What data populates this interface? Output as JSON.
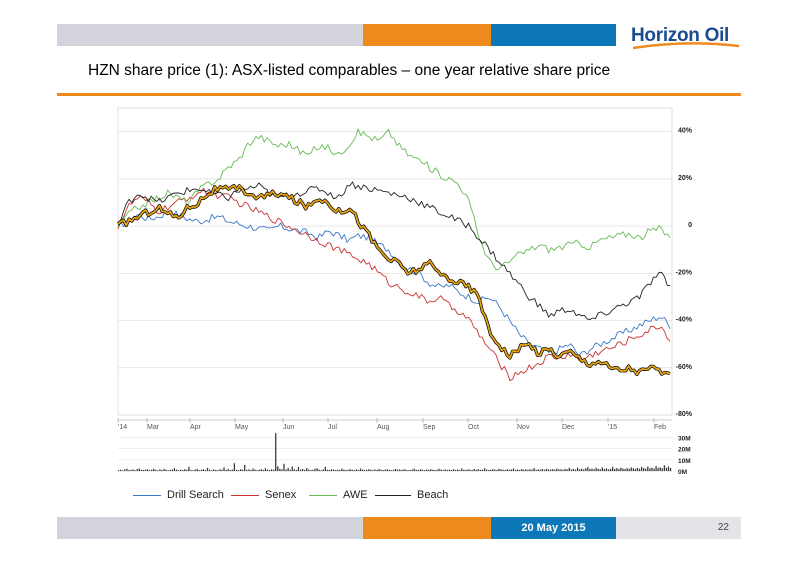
{
  "header": {
    "logo_text": "Horizon Oil",
    "title": "HZN share price (1): ASX-listed comparables – one year relative share price"
  },
  "footer": {
    "date": "20 May 2015",
    "page": "22"
  },
  "colors": {
    "orange": "#ef8a1e",
    "blue": "#0d78b8",
    "grey": "#d3d3dc",
    "drill_search": "#3a78c8",
    "senex": "#cc3333",
    "awe": "#66bb55",
    "beach": "#222222",
    "hzn": "#e8a516"
  },
  "chart_data": {
    "type": "line",
    "y_ticks": [
      "40%",
      "20%",
      "0",
      "-20%",
      "-40%",
      "-60%",
      "-80%"
    ],
    "ylim": [
      -80,
      50
    ],
    "x_ticks": [
      "'14",
      "Mar",
      "Apr",
      "May",
      "Jun",
      "Jul",
      "Aug",
      "Sep",
      "Oct",
      "Nov",
      "Dec",
      "'15",
      "Feb"
    ],
    "series": [
      {
        "name": "Drill Search",
        "key": "drill_search",
        "values": [
          0,
          2,
          5,
          3,
          4,
          6,
          5,
          3,
          2,
          3,
          4,
          2,
          1,
          0,
          -1,
          -2,
          0,
          -1,
          -2,
          -3,
          -5,
          -2,
          -4,
          -6,
          -4,
          -5,
          -8,
          -10,
          -15,
          -18,
          -20,
          -24,
          -26,
          -25,
          -28,
          -30,
          -32,
          -30,
          -34,
          -40,
          -46,
          -50,
          -52,
          -54,
          -52,
          -50,
          -55,
          -52,
          -50,
          -48,
          -46,
          -44,
          -42,
          -40,
          -38,
          -42
        ]
      },
      {
        "name": "Senex",
        "key": "senex",
        "values": [
          0,
          8,
          12,
          10,
          6,
          8,
          10,
          12,
          14,
          15,
          13,
          12,
          10,
          8,
          6,
          4,
          2,
          0,
          -2,
          -4,
          -6,
          -8,
          -10,
          -12,
          -14,
          -16,
          -20,
          -24,
          -26,
          -28,
          -30,
          -32,
          -30,
          -34,
          -36,
          -40,
          -46,
          -52,
          -58,
          -64,
          -62,
          -60,
          -58,
          -55,
          -56,
          -54,
          -57,
          -55,
          -53,
          -52,
          -50,
          -48,
          -46,
          -44,
          -42,
          -48
        ]
      },
      {
        "name": "AWE",
        "key": "awe",
        "values": [
          0,
          5,
          8,
          10,
          12,
          14,
          12,
          10,
          15,
          18,
          20,
          25,
          28,
          35,
          38,
          36,
          34,
          35,
          32,
          30,
          34,
          33,
          30,
          35,
          40,
          38,
          36,
          40,
          34,
          30,
          28,
          25,
          22,
          20,
          18,
          10,
          -5,
          -15,
          -18,
          -15,
          -12,
          -10,
          -8,
          -10,
          -9,
          -8,
          -7,
          -9,
          -6,
          -5,
          -4,
          -3,
          -5,
          -2,
          -1,
          -5
        ]
      },
      {
        "name": "Beach",
        "key": "beach",
        "values": [
          0,
          10,
          14,
          12,
          10,
          12,
          14,
          15,
          16,
          14,
          13,
          12,
          15,
          16,
          17,
          14,
          12,
          13,
          14,
          15,
          16,
          14,
          12,
          18,
          17,
          16,
          15,
          14,
          13,
          12,
          10,
          8,
          6,
          4,
          2,
          0,
          -5,
          -10,
          -15,
          -20,
          -25,
          -30,
          -34,
          -38,
          -36,
          -35,
          -38,
          -40,
          -38,
          -36,
          -34,
          -32,
          -30,
          -24,
          -20,
          -26
        ]
      },
      {
        "name": "",
        "key": "hzn",
        "values": [
          0,
          2,
          4,
          6,
          8,
          5,
          4,
          8,
          10,
          14,
          16,
          15,
          16,
          14,
          12,
          13,
          14,
          12,
          10,
          8,
          12,
          10,
          6,
          8,
          2,
          -4,
          -10,
          -14,
          -16,
          -20,
          -18,
          -16,
          -20,
          -22,
          -24,
          -26,
          -30,
          -45,
          -50,
          -55,
          -52,
          -50,
          -54,
          -52,
          -55,
          -53,
          -56,
          -58,
          -57,
          -60,
          -61,
          -60,
          -62,
          -60,
          -61,
          -64
        ]
      }
    ],
    "volume": {
      "y_ticks": [
        "30M",
        "20M",
        "10M",
        "0M"
      ],
      "ylim": [
        0,
        35
      ],
      "values": [
        0.8,
        1.2,
        0.6,
        1.5,
        2.1,
        0.9,
        1.1,
        1.4,
        0.7,
        1.8,
        2.2,
        1.0,
        0.9,
        1.3,
        1.6,
        0.8,
        1.2,
        2.0,
        1.1,
        0.7,
        1.5,
        0.9,
        1.8,
        1.2,
        0.6,
        1.0,
        1.4,
        2.5,
        1.3,
        0.8,
        1.2,
        0.9,
        1.6,
        1.1,
        3.8,
        1.0,
        0.7,
        1.3,
        1.9,
        0.8,
        1.1,
        1.6,
        0.9,
        2.8,
        1.2,
        0.7,
        1.4,
        1.0,
        0.8,
        1.5,
        1.2,
        3.2,
        1.0,
        1.8,
        0.9,
        1.3,
        7.0,
        1.1,
        0.8,
        1.6,
        1.2,
        5.5,
        1.0,
        1.4,
        0.9,
        2.2,
        1.3,
        0.8,
        1.1,
        1.7,
        1.0,
        2.4,
        1.3,
        0.9,
        1.5,
        1.1,
        34,
        4.2,
        2.0,
        1.5,
        6.5,
        1.3,
        2.8,
        1.1,
        4.0,
        1.6,
        0.9,
        3.5,
        1.2,
        1.8,
        1.0,
        2.6,
        1.4,
        0.8,
        1.1,
        1.9,
        2.5,
        1.2,
        0.7,
        1.4,
        3.8,
        1.1,
        0.9,
        1.6,
        1.3,
        0.8,
        1.2,
        1.0,
        2.0,
        1.4,
        0.9,
        1.1,
        1.7,
        1.2,
        0.8,
        1.5,
        1.0,
        2.2,
        1.3,
        0.9,
        1.1,
        1.6,
        1.2,
        0.8,
        1.4,
        1.0,
        1.8,
        1.1,
        0.9,
        1.3,
        1.5,
        1.0,
        0.8,
        1.2,
        1.9,
        1.1,
        1.4,
        0.9,
        1.6,
        1.2,
        0.8,
        1.0,
        1.3,
        2.1,
        1.1,
        0.9,
        1.5,
        1.2,
        0.8,
        1.4,
        1.0,
        1.7,
        1.2,
        0.9,
        1.1,
        2.0,
        1.3,
        0.8,
        1.5,
        1.0,
        1.2,
        0.9,
        1.6,
        1.1,
        1.4,
        0.8,
        2.3,
        1.2,
        1.0,
        1.5,
        1.3,
        0.9,
        1.8,
        1.1,
        1.6,
        1.0,
        1.2,
        2.4,
        1.4,
        0.9,
        1.1,
        1.7,
        1.3,
        1.0,
        2.0,
        1.5,
        1.2,
        0.9,
        1.6,
        1.1,
        1.4,
        2.2,
        1.0,
        1.3,
        0.9,
        1.8,
        1.2,
        1.5,
        1.1,
        1.6,
        1.3,
        2.6,
        1.0,
        1.4,
        1.2,
        1.8,
        1.1,
        2.0,
        1.5,
        1.3,
        1.7,
        1.2,
        2.2,
        1.4,
        1.6,
        1.1,
        1.9,
        1.5,
        2.8,
        1.3,
        1.8,
        1.2,
        3.0,
        1.6,
        2.0,
        1.4,
        2.5,
        3.5,
        1.8,
        2.2,
        1.5,
        2.9,
        2.0,
        1.6,
        3.2,
        1.8,
        2.4,
        1.5,
        2.0,
        3.8,
        1.9,
        2.6,
        1.7,
        3.0,
        2.2,
        1.8,
        2.5,
        2.0,
        3.2,
        2.4,
        1.9,
        2.8,
        2.1,
        3.5,
        2.6,
        2.0,
        4.0,
        2.4,
        3.0,
        2.2,
        4.5,
        2.8,
        3.3,
        2.5,
        5.2,
        3.0,
        4.0,
        2.7
      ]
    }
  }
}
